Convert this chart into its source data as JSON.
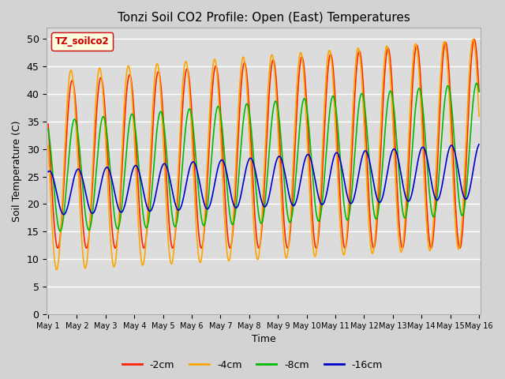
{
  "title": "Tonzi Soil CO2 Profile: Open (East) Temperatures",
  "xlabel": "Time",
  "ylabel": "Soil Temperature (C)",
  "ylim": [
    0,
    52
  ],
  "yticks": [
    0,
    5,
    10,
    15,
    20,
    25,
    30,
    35,
    40,
    45,
    50
  ],
  "series": [
    {
      "label": "-2cm",
      "color": "#ff2200"
    },
    {
      "label": "-4cm",
      "color": "#ffa500"
    },
    {
      "label": "-8cm",
      "color": "#00bb00"
    },
    {
      "label": "-16cm",
      "color": "#0000cc"
    }
  ],
  "legend_box_label": "TZ_soilco2",
  "legend_box_facecolor": "#ffffe0",
  "legend_box_edgecolor": "#cc0000",
  "start_day": 1,
  "end_day": 16,
  "n_points": 3000
}
